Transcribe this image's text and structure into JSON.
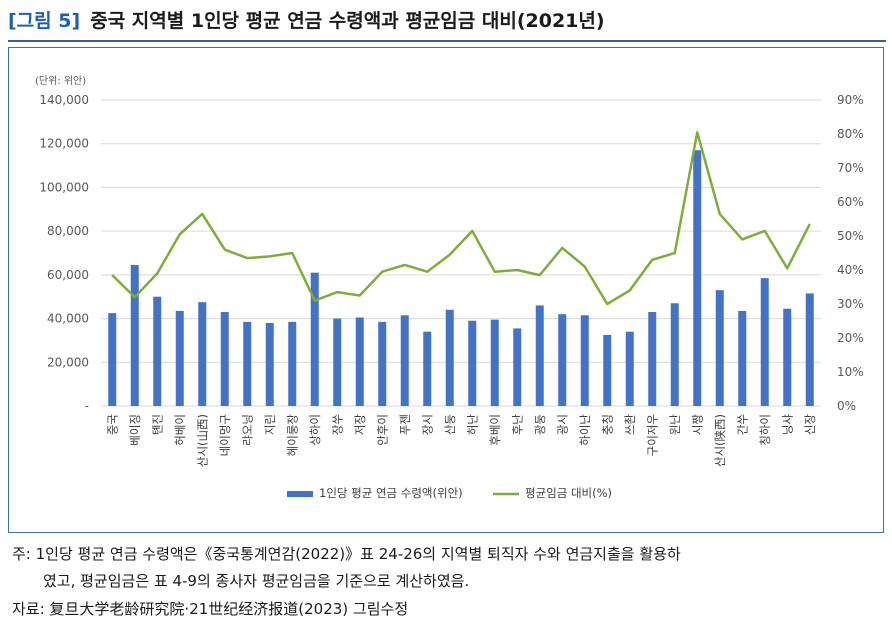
{
  "figure": {
    "title_number": "[그림 5]",
    "title_text": "중국 지역별 1인당 평균 연금 수령액과 평균임금 대비(2021년)"
  },
  "chart_data": {
    "type": "bar",
    "unit_label": "(단위: 위안)",
    "categories": [
      "중국",
      "베이징",
      "톈진",
      "허베이",
      "산시(山西)",
      "네이멍구",
      "랴오닝",
      "지린",
      "헤이룽장",
      "상하이",
      "장쑤",
      "저장",
      "안후이",
      "푸젠",
      "장시",
      "산둥",
      "허난",
      "후베이",
      "후난",
      "광둥",
      "광시",
      "하이난",
      "충칭",
      "쓰촨",
      "구이저우",
      "윈난",
      "시짱",
      "산시(陕西)",
      "간쑤",
      "칭하이",
      "닝샤",
      "신장"
    ],
    "series": [
      {
        "name": "1인당 평균 연금 수령액(위안)",
        "axis": "left",
        "color": "#4472c4",
        "values": [
          42500,
          64500,
          50000,
          43500,
          47500,
          43000,
          38500,
          38000,
          38500,
          61000,
          40000,
          40500,
          38500,
          41500,
          34000,
          44000,
          39000,
          39500,
          35500,
          46000,
          42000,
          41500,
          32500,
          34000,
          43000,
          47000,
          117000,
          53000,
          43500,
          58500,
          44500,
          51500
        ]
      },
      {
        "name": "평균임금 대비(%)",
        "axis": "right",
        "color": "#7fad3d",
        "type": "line",
        "values": [
          38.5,
          32,
          39,
          50.5,
          56.5,
          46,
          43.5,
          44,
          45,
          31,
          33.5,
          32.5,
          39.5,
          41.5,
          39.5,
          44.5,
          51.5,
          39.5,
          40,
          38.5,
          46.5,
          41,
          30,
          34,
          43,
          45,
          80.5,
          56.5,
          49,
          51.5,
          40.5,
          53.5
        ]
      }
    ],
    "y_left": {
      "min": 0,
      "max": 140000,
      "ticks": [
        "-",
        "20,000",
        "40,000",
        "60,000",
        "80,000",
        "100,000",
        "120,000",
        "140,000"
      ]
    },
    "y_right": {
      "min": 0,
      "max": 90,
      "ticks": [
        "0%",
        "10%",
        "20%",
        "30%",
        "40%",
        "50%",
        "60%",
        "70%",
        "80%",
        "90%"
      ]
    },
    "grid": true,
    "legend_position": "bottom"
  },
  "notes": {
    "line1": "주: 1인당 평균 연금 수령액은《중국통계연감(2022)》표 24-26의 지역별 퇴직자 수와 연금지출을 활용하",
    "line2": "였고, 평균임금은 표 4-9의 종사자 평균임금을 기준으로 계산하였음.",
    "line3": "자료: 复旦大学老龄研究院·21世纪经济报道(2023) 그림수정"
  }
}
